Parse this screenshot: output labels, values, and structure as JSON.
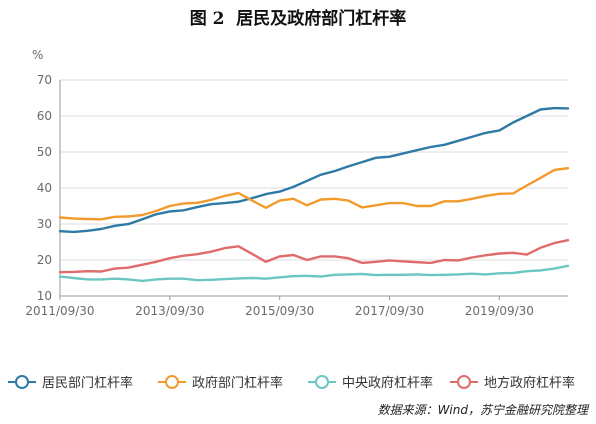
{
  "title": "图 2  居民及政府部门杠杆率",
  "source": "数据来源：Wind，苏宁金融研究院整理",
  "chart_data": {
    "type": "line",
    "ylabel": "%",
    "ylim": [
      10,
      70
    ],
    "yticks": [
      10,
      20,
      30,
      40,
      50,
      60,
      70
    ],
    "x": [
      "2011/09/30",
      "2011/12/31",
      "2012/03/31",
      "2012/06/30",
      "2012/09/30",
      "2012/12/31",
      "2013/03/31",
      "2013/06/30",
      "2013/09/30",
      "2013/12/31",
      "2014/03/31",
      "2014/06/30",
      "2014/09/30",
      "2014/12/31",
      "2015/03/31",
      "2015/06/30",
      "2015/09/30",
      "2015/12/31",
      "2016/03/31",
      "2016/06/30",
      "2016/09/30",
      "2016/12/31",
      "2017/03/31",
      "2017/06/30",
      "2017/09/30",
      "2017/12/31",
      "2018/03/31",
      "2018/06/30",
      "2018/09/30",
      "2018/12/31",
      "2019/03/31",
      "2019/06/30",
      "2019/09/30",
      "2019/12/31",
      "2020/03/31",
      "2020/06/30",
      "2020/09/30",
      "2020/12/31"
    ],
    "xtick_labels": [
      "2011/09/30",
      "2013/09/30",
      "2015/09/30",
      "2017/09/30",
      "2019/09/30"
    ],
    "grid": true,
    "legend_position": "bottom",
    "series": [
      {
        "name": "居民部门杠杆率",
        "color": "#2e7aa6",
        "values": [
          28.0,
          27.8,
          28.1,
          28.6,
          29.5,
          30.0,
          31.3,
          32.7,
          33.5,
          33.8,
          34.7,
          35.5,
          35.8,
          36.2,
          37.2,
          38.3,
          39.0,
          40.3,
          42.0,
          43.7,
          44.7,
          46.0,
          47.2,
          48.4,
          48.7,
          49.6,
          50.5,
          51.4,
          52.0,
          53.1,
          54.2,
          55.3,
          56.0,
          58.2,
          60.0,
          61.8,
          62.2,
          62.1
        ]
      },
      {
        "name": "政府部门杠杆率",
        "color": "#f39a2d",
        "values": [
          31.8,
          31.5,
          31.4,
          31.3,
          32.0,
          32.1,
          32.5,
          33.6,
          35.0,
          35.7,
          35.9,
          36.7,
          37.8,
          38.6,
          36.5,
          34.5,
          36.5,
          37.0,
          35.2,
          36.8,
          37.0,
          36.5,
          34.6,
          35.2,
          35.8,
          35.8,
          35.0,
          35.0,
          36.3,
          36.3,
          37.0,
          37.8,
          38.4,
          38.5,
          40.7,
          42.8,
          45.0,
          45.5
        ]
      },
      {
        "name": "中央政府杠杆率",
        "color": "#6cc7c2",
        "values": [
          15.4,
          15.0,
          14.6,
          14.6,
          14.8,
          14.6,
          14.2,
          14.6,
          14.8,
          14.8,
          14.4,
          14.5,
          14.7,
          14.9,
          15.0,
          14.8,
          15.2,
          15.5,
          15.6,
          15.4,
          15.9,
          16.0,
          16.1,
          15.8,
          15.9,
          15.9,
          16.0,
          15.8,
          15.9,
          16.0,
          16.2,
          16.0,
          16.3,
          16.4,
          16.9,
          17.1,
          17.6,
          18.4
        ]
      },
      {
        "name": "地方政府杠杆率",
        "color": "#e06b6b",
        "values": [
          16.6,
          16.7,
          16.9,
          16.8,
          17.6,
          17.9,
          18.7,
          19.5,
          20.5,
          21.2,
          21.6,
          22.3,
          23.3,
          23.8,
          21.7,
          19.5,
          21.0,
          21.4,
          20.0,
          21.0,
          21.0,
          20.5,
          19.2,
          19.5,
          19.9,
          19.6,
          19.4,
          19.2,
          20.0,
          19.9,
          20.7,
          21.3,
          21.8,
          22.0,
          21.5,
          23.4,
          24.7,
          25.5
        ]
      }
    ]
  }
}
